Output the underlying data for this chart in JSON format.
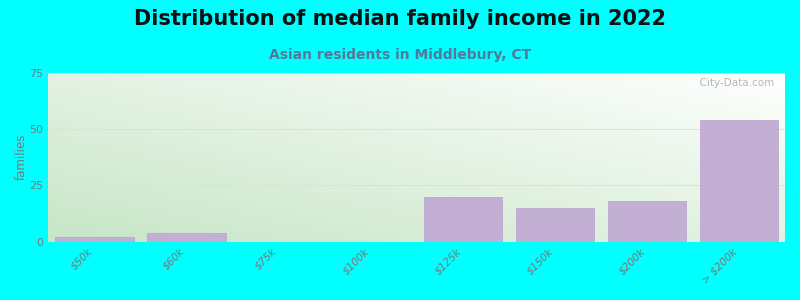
{
  "title": "Distribution of median family income in 2022",
  "subtitle": "Asian residents in Middlebury, CT",
  "categories": [
    "$50k",
    "$60k",
    "$75k",
    "$100k",
    "$125k",
    "$150k",
    "$200k",
    "> $200k"
  ],
  "all_values": [
    2,
    4,
    0,
    0,
    20,
    15,
    18,
    54
  ],
  "ylim": [
    0,
    75
  ],
  "yticks": [
    0,
    25,
    50,
    75
  ],
  "ylabel": "families",
  "background_color": "#00FFFF",
  "bar_color": "#c4afd4",
  "bar_edge_color": "#b8a0cc",
  "grid_color": "#dddddd",
  "title_fontsize": 15,
  "subtitle_fontsize": 10,
  "subtitle_color": "#557799",
  "watermark": "  City-Data.com",
  "tick_color": "#777777",
  "tick_fontsize": 7.5
}
